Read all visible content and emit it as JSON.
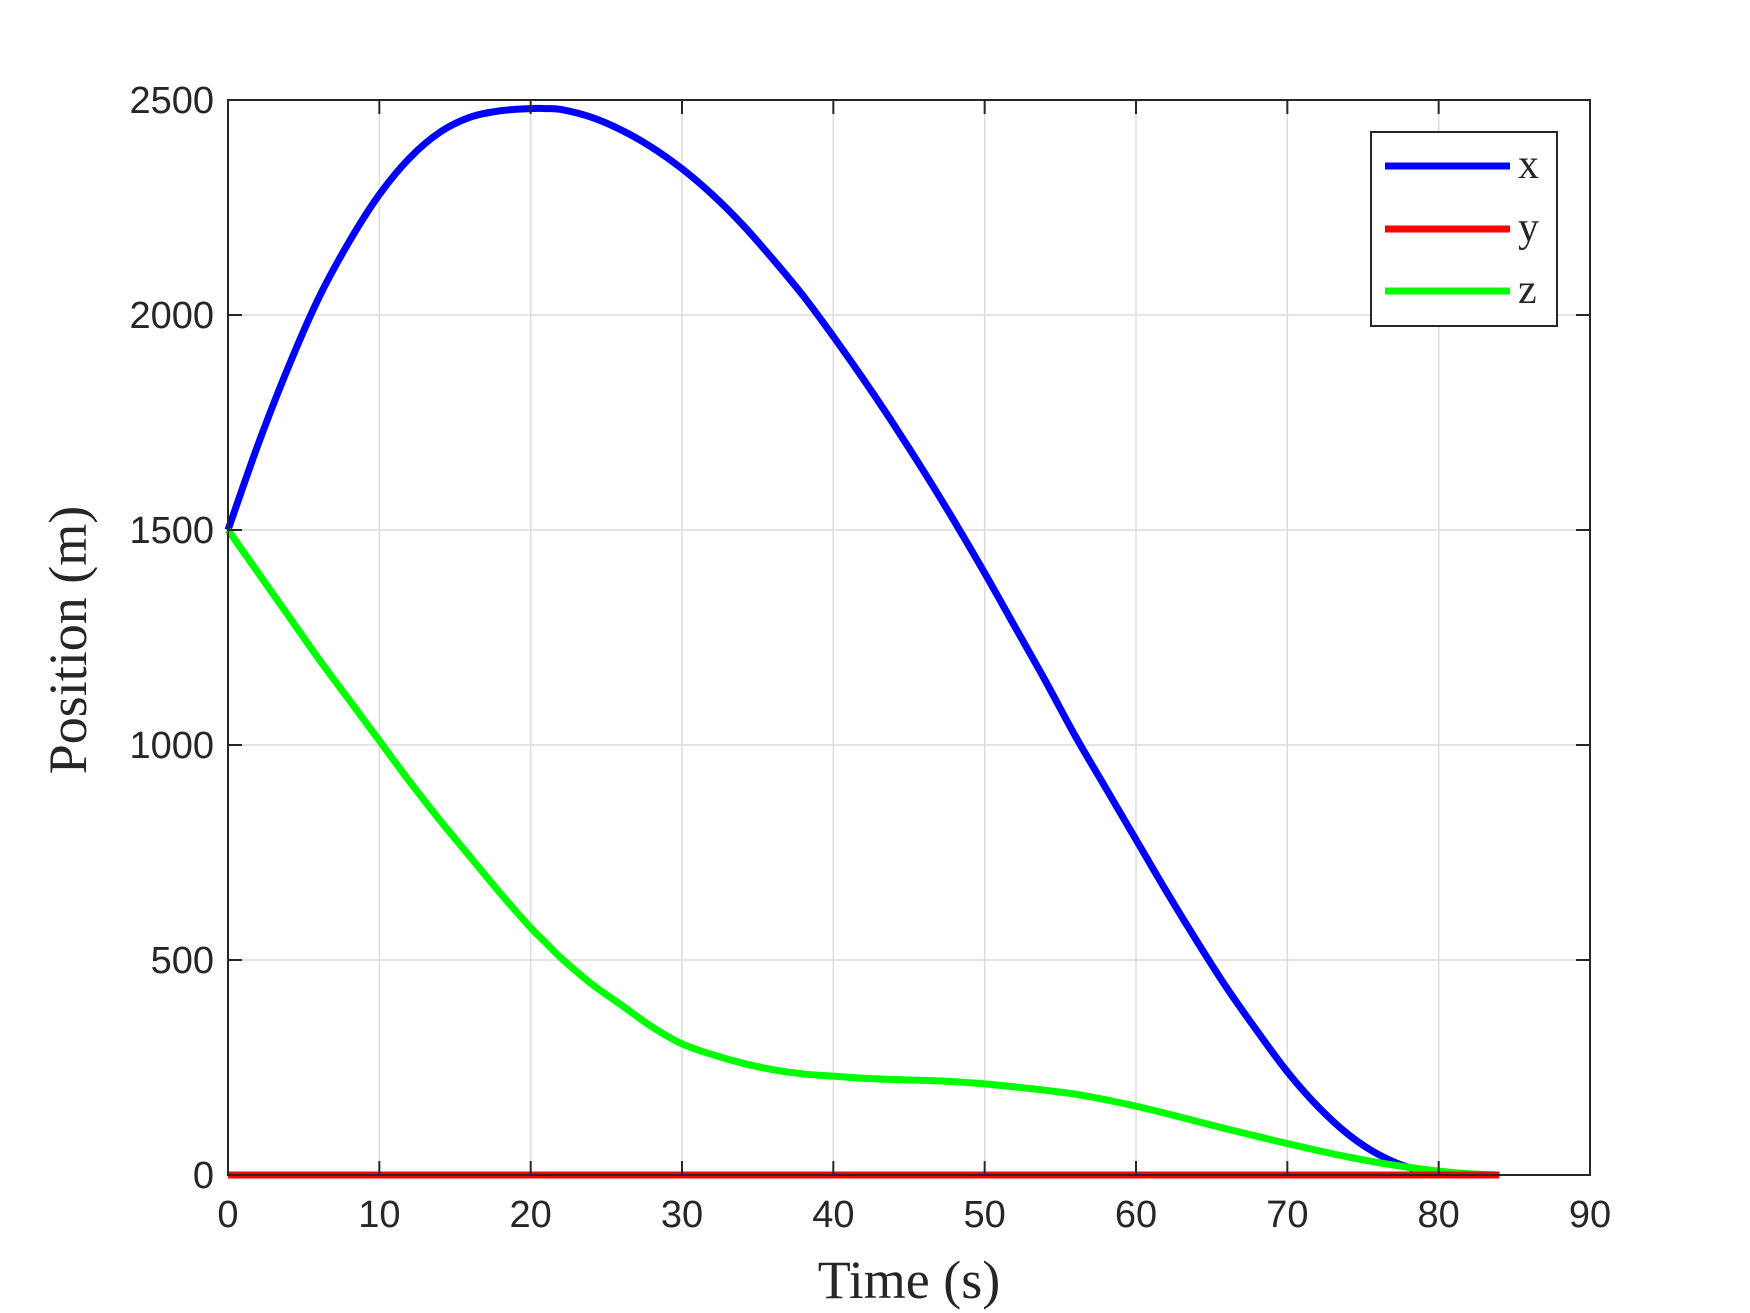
{
  "chart_data": {
    "type": "line",
    "xlabel": "Time (s)",
    "ylabel": "Position (m)",
    "xlim": [
      0,
      90
    ],
    "ylim": [
      0,
      2500
    ],
    "xticks": [
      0,
      10,
      20,
      30,
      40,
      50,
      60,
      70,
      80,
      90
    ],
    "yticks": [
      0,
      500,
      1000,
      1500,
      2000,
      2500
    ],
    "xtick_labels": [
      "0",
      "10",
      "20",
      "30",
      "40",
      "50",
      "60",
      "70",
      "80",
      "90"
    ],
    "ytick_labels": [
      "0",
      "500",
      "1000",
      "1500",
      "2000",
      "2500"
    ],
    "grid": true,
    "legend_position": "top-right",
    "x": [
      0,
      2,
      4,
      6,
      8,
      10,
      12,
      14,
      16,
      18,
      20,
      21,
      22,
      24,
      26,
      28,
      30,
      32,
      34,
      36,
      38,
      40,
      42,
      44,
      46,
      48,
      50,
      52,
      54,
      56,
      58,
      60,
      62,
      64,
      66,
      68,
      70,
      72,
      74,
      76,
      78,
      80,
      82,
      84
    ],
    "series": [
      {
        "name": "x",
        "color": "#0000ff",
        "values": [
          1500,
          1700,
          1880,
          2040,
          2170,
          2280,
          2365,
          2425,
          2460,
          2475,
          2480,
          2480,
          2478,
          2460,
          2430,
          2390,
          2340,
          2280,
          2210,
          2130,
          2045,
          1950,
          1850,
          1745,
          1635,
          1520,
          1400,
          1275,
          1150,
          1020,
          900,
          780,
          660,
          545,
          435,
          335,
          240,
          160,
          95,
          48,
          18,
          5,
          1,
          0
        ]
      },
      {
        "name": "y",
        "color": "#ff0000",
        "values": [
          0,
          0,
          0,
          0,
          0,
          0,
          0,
          0,
          0,
          0,
          0,
          0,
          0,
          0,
          0,
          0,
          0,
          0,
          0,
          0,
          0,
          0,
          0,
          0,
          0,
          0,
          0,
          0,
          0,
          0,
          0,
          0,
          0,
          0,
          0,
          0,
          0,
          0,
          0,
          0,
          0,
          0,
          0,
          0
        ]
      },
      {
        "name": "z",
        "color": "#00ff00",
        "values": [
          1500,
          1400,
          1300,
          1200,
          1105,
          1010,
          915,
          825,
          740,
          655,
          575,
          540,
          505,
          445,
          395,
          345,
          305,
          280,
          260,
          245,
          235,
          230,
          225,
          222,
          220,
          217,
          212,
          205,
          197,
          188,
          175,
          160,
          143,
          125,
          107,
          90,
          73,
          57,
          42,
          29,
          18,
          9,
          3,
          0
        ]
      }
    ]
  }
}
